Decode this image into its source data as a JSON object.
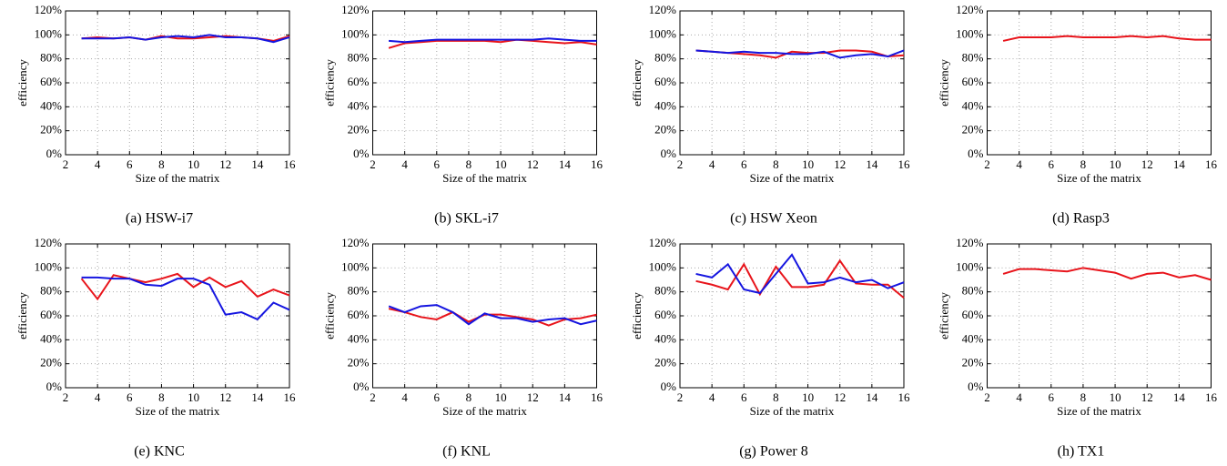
{
  "chart_data": [
    {
      "type": "line",
      "caption": "(a) HSW-i7",
      "xlabel": "Size of the matrix",
      "ylabel": "efficiency",
      "grid": true,
      "xlim": [
        2,
        16
      ],
      "ylim": [
        0,
        120
      ],
      "xticks": [
        2,
        4,
        6,
        8,
        10,
        12,
        14,
        16
      ],
      "yticks": [
        {
          "value": 0,
          "label": "0%"
        },
        {
          "value": 20,
          "label": "20%"
        },
        {
          "value": 40,
          "label": "40%"
        },
        {
          "value": 60,
          "label": "60%"
        },
        {
          "value": 80,
          "label": "80%"
        },
        {
          "value": 100,
          "label": "100%"
        },
        {
          "value": 120,
          "label": "120%"
        }
      ],
      "x": [
        3,
        4,
        5,
        6,
        7,
        8,
        9,
        10,
        11,
        12,
        13,
        14,
        15,
        16
      ],
      "series": [
        {
          "color": "#e8141b",
          "values": [
            97,
            98,
            97,
            98,
            96,
            99,
            97,
            97,
            98,
            99,
            98,
            97,
            95,
            99
          ]
        },
        {
          "color": "#1515e0",
          "values": [
            97,
            97,
            97,
            98,
            96,
            98,
            99,
            98,
            100,
            98,
            98,
            97,
            94,
            98
          ]
        }
      ]
    },
    {
      "type": "line",
      "caption": "(b) SKL-i7",
      "xlabel": "Size of the matrix",
      "ylabel": "efficiency",
      "grid": true,
      "xlim": [
        2,
        16
      ],
      "ylim": [
        0,
        120
      ],
      "xticks": [
        2,
        4,
        6,
        8,
        10,
        12,
        14,
        16
      ],
      "yticks": [
        {
          "value": 0,
          "label": "0%"
        },
        {
          "value": 20,
          "label": "20%"
        },
        {
          "value": 40,
          "label": "40%"
        },
        {
          "value": 60,
          "label": "60%"
        },
        {
          "value": 80,
          "label": "80%"
        },
        {
          "value": 100,
          "label": "100%"
        },
        {
          "value": 120,
          "label": "120%"
        }
      ],
      "x": [
        3,
        4,
        5,
        6,
        7,
        8,
        9,
        10,
        11,
        12,
        13,
        14,
        15,
        16
      ],
      "series": [
        {
          "color": "#e8141b",
          "values": [
            89,
            93,
            94,
            95,
            95,
            95,
            95,
            94,
            96,
            95,
            94,
            93,
            94,
            92
          ]
        },
        {
          "color": "#1515e0",
          "values": [
            95,
            94,
            95,
            96,
            96,
            96,
            96,
            96,
            96,
            96,
            97,
            96,
            95,
            95
          ]
        }
      ]
    },
    {
      "type": "line",
      "caption": "(c) HSW Xeon",
      "xlabel": "Size of the matrix",
      "ylabel": "efficiency",
      "grid": true,
      "xlim": [
        2,
        16
      ],
      "ylim": [
        0,
        120
      ],
      "xticks": [
        2,
        4,
        6,
        8,
        10,
        12,
        14,
        16
      ],
      "yticks": [
        {
          "value": 0,
          "label": "0%"
        },
        {
          "value": 20,
          "label": "20%"
        },
        {
          "value": 40,
          "label": "40%"
        },
        {
          "value": 60,
          "label": "60%"
        },
        {
          "value": 80,
          "label": "80%"
        },
        {
          "value": 100,
          "label": "100%"
        },
        {
          "value": 120,
          "label": "120%"
        }
      ],
      "x": [
        3,
        4,
        5,
        6,
        7,
        8,
        9,
        10,
        11,
        12,
        13,
        14,
        15,
        16
      ],
      "series": [
        {
          "color": "#e8141b",
          "values": [
            87,
            86,
            85,
            84,
            83,
            81,
            86,
            85,
            85,
            87,
            87,
            86,
            82,
            83
          ]
        },
        {
          "color": "#1515e0",
          "values": [
            87,
            86,
            85,
            86,
            85,
            85,
            84,
            84,
            86,
            81,
            83,
            84,
            82,
            87
          ]
        }
      ]
    },
    {
      "type": "line",
      "caption": "(d) Rasp3",
      "xlabel": "Size of the matrix",
      "ylabel": "efficiency",
      "grid": true,
      "xlim": [
        2,
        16
      ],
      "ylim": [
        0,
        120
      ],
      "xticks": [
        2,
        4,
        6,
        8,
        10,
        12,
        14,
        16
      ],
      "yticks": [
        {
          "value": 0,
          "label": "0%"
        },
        {
          "value": 20,
          "label": "20%"
        },
        {
          "value": 40,
          "label": "40%"
        },
        {
          "value": 60,
          "label": "60%"
        },
        {
          "value": 80,
          "label": "80%"
        },
        {
          "value": 100,
          "label": "100%"
        },
        {
          "value": 120,
          "label": "120%"
        }
      ],
      "x": [
        3,
        4,
        5,
        6,
        7,
        8,
        9,
        10,
        11,
        12,
        13,
        14,
        15,
        16
      ],
      "series": [
        {
          "color": "#e8141b",
          "values": [
            95,
            98,
            98,
            98,
            99,
            98,
            98,
            98,
            99,
            98,
            99,
            97,
            96,
            96
          ]
        }
      ]
    },
    {
      "type": "line",
      "caption": "(e) KNC",
      "xlabel": "Size of the matrix",
      "ylabel": "efficiency",
      "grid": true,
      "xlim": [
        2,
        16
      ],
      "ylim": [
        0,
        120
      ],
      "xticks": [
        2,
        4,
        6,
        8,
        10,
        12,
        14,
        16
      ],
      "yticks": [
        {
          "value": 0,
          "label": "0%"
        },
        {
          "value": 20,
          "label": "20%"
        },
        {
          "value": 40,
          "label": "40%"
        },
        {
          "value": 60,
          "label": "60%"
        },
        {
          "value": 80,
          "label": "80%"
        },
        {
          "value": 100,
          "label": "100%"
        },
        {
          "value": 120,
          "label": "120%"
        }
      ],
      "x": [
        3,
        4,
        5,
        6,
        7,
        8,
        9,
        10,
        11,
        12,
        13,
        14,
        15,
        16
      ],
      "series": [
        {
          "color": "#e8141b",
          "values": [
            91,
            74,
            94,
            91,
            88,
            91,
            95,
            84,
            92,
            84,
            89,
            76,
            82,
            77
          ]
        },
        {
          "color": "#1515e0",
          "values": [
            92,
            92,
            91,
            91,
            86,
            85,
            91,
            91,
            86,
            61,
            63,
            57,
            71,
            65
          ]
        }
      ]
    },
    {
      "type": "line",
      "caption": "(f) KNL",
      "xlabel": "Size of the matrix",
      "ylabel": "efficiency",
      "grid": true,
      "xlim": [
        2,
        16
      ],
      "ylim": [
        0,
        120
      ],
      "xticks": [
        2,
        4,
        6,
        8,
        10,
        12,
        14,
        16
      ],
      "yticks": [
        {
          "value": 0,
          "label": "0%"
        },
        {
          "value": 20,
          "label": "20%"
        },
        {
          "value": 40,
          "label": "40%"
        },
        {
          "value": 60,
          "label": "60%"
        },
        {
          "value": 80,
          "label": "80%"
        },
        {
          "value": 100,
          "label": "100%"
        },
        {
          "value": 120,
          "label": "120%"
        }
      ],
      "x": [
        3,
        4,
        5,
        6,
        7,
        8,
        9,
        10,
        11,
        12,
        13,
        14,
        15,
        16
      ],
      "series": [
        {
          "color": "#e8141b",
          "values": [
            66,
            63,
            59,
            57,
            63,
            55,
            61,
            61,
            59,
            57,
            52,
            57,
            58,
            61
          ]
        },
        {
          "color": "#1515e0",
          "values": [
            68,
            63,
            68,
            69,
            63,
            53,
            62,
            58,
            58,
            55,
            57,
            58,
            53,
            56
          ]
        }
      ]
    },
    {
      "type": "line",
      "caption": "(g) Power 8",
      "xlabel": "Size of the matrix",
      "ylabel": "efficiency",
      "grid": true,
      "xlim": [
        2,
        16
      ],
      "ylim": [
        0,
        120
      ],
      "xticks": [
        2,
        4,
        6,
        8,
        10,
        12,
        14,
        16
      ],
      "yticks": [
        {
          "value": 0,
          "label": "0%"
        },
        {
          "value": 20,
          "label": "20%"
        },
        {
          "value": 40,
          "label": "40%"
        },
        {
          "value": 60,
          "label": "60%"
        },
        {
          "value": 80,
          "label": "80%"
        },
        {
          "value": 100,
          "label": "100%"
        },
        {
          "value": 120,
          "label": "120%"
        }
      ],
      "x": [
        3,
        4,
        5,
        6,
        7,
        8,
        9,
        10,
        11,
        12,
        13,
        14,
        15,
        16
      ],
      "series": [
        {
          "color": "#e8141b",
          "values": [
            89,
            86,
            82,
            103,
            78,
            101,
            84,
            84,
            86,
            106,
            87,
            86,
            86,
            75
          ]
        },
        {
          "color": "#1515e0",
          "values": [
            95,
            92,
            103,
            82,
            79,
            95,
            111,
            87,
            88,
            92,
            88,
            90,
            83,
            88
          ]
        }
      ]
    },
    {
      "type": "line",
      "caption": "(h) TX1",
      "xlabel": "Size of the matrix",
      "ylabel": "efficiency",
      "grid": true,
      "xlim": [
        2,
        16
      ],
      "ylim": [
        0,
        120
      ],
      "xticks": [
        2,
        4,
        6,
        8,
        10,
        12,
        14,
        16
      ],
      "yticks": [
        {
          "value": 0,
          "label": "0%"
        },
        {
          "value": 20,
          "label": "20%"
        },
        {
          "value": 40,
          "label": "40%"
        },
        {
          "value": 60,
          "label": "60%"
        },
        {
          "value": 80,
          "label": "80%"
        },
        {
          "value": 100,
          "label": "100%"
        },
        {
          "value": 120,
          "label": "120%"
        }
      ],
      "x": [
        3,
        4,
        5,
        6,
        7,
        8,
        9,
        10,
        11,
        12,
        13,
        14,
        15,
        16
      ],
      "series": [
        {
          "color": "#e8141b",
          "values": [
            95,
            99,
            99,
            98,
            97,
            100,
            98,
            96,
            91,
            95,
            96,
            92,
            94,
            90
          ]
        }
      ]
    }
  ]
}
